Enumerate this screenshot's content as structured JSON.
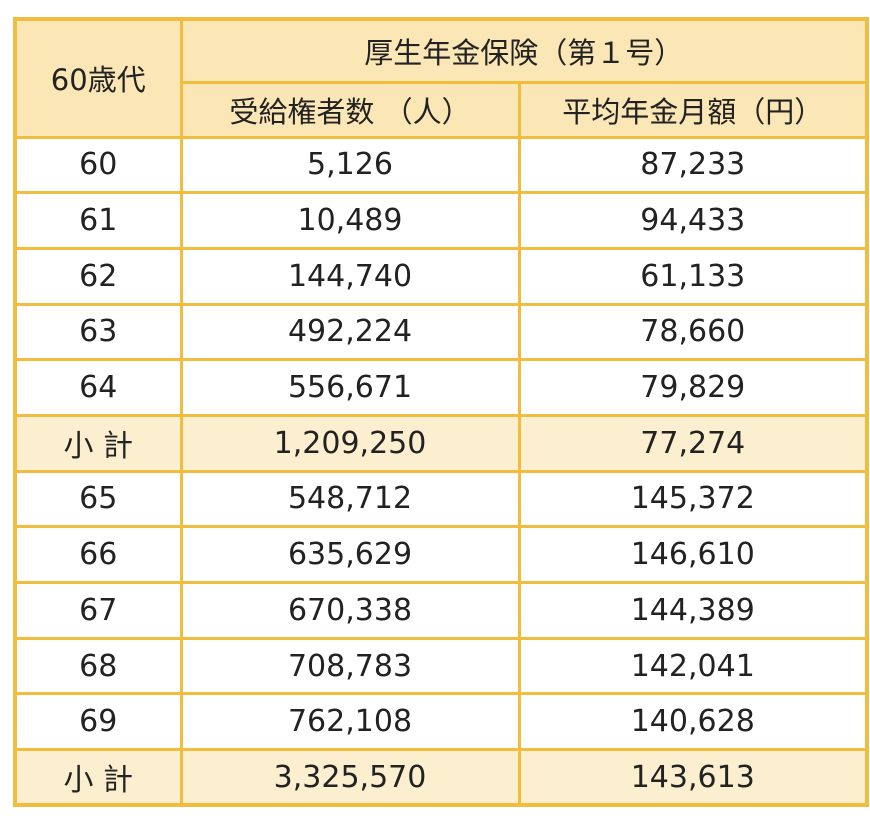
{
  "table": {
    "corner_label": "60歳代",
    "group_header": "厚生年金保険（第１号）",
    "columns": [
      "受給権者数 （人）",
      "平均年金月額（円）"
    ],
    "rows": [
      {
        "age": "60",
        "recipients": "5,126",
        "average": "87,233",
        "subtotal": false
      },
      {
        "age": "61",
        "recipients": "10,489",
        "average": "94,433",
        "subtotal": false
      },
      {
        "age": "62",
        "recipients": "144,740",
        "average": "61,133",
        "subtotal": false
      },
      {
        "age": "63",
        "recipients": "492,224",
        "average": "78,660",
        "subtotal": false
      },
      {
        "age": "64",
        "recipients": "556,671",
        "average": "79,829",
        "subtotal": false
      },
      {
        "age": "小 計",
        "recipients": "1,209,250",
        "average": "77,274",
        "subtotal": true
      },
      {
        "age": "65",
        "recipients": "548,712",
        "average": "145,372",
        "subtotal": false
      },
      {
        "age": "66",
        "recipients": "635,629",
        "average": "146,610",
        "subtotal": false
      },
      {
        "age": "67",
        "recipients": "670,338",
        "average": "144,389",
        "subtotal": false
      },
      {
        "age": "68",
        "recipients": "708,783",
        "average": "142,041",
        "subtotal": false
      },
      {
        "age": "69",
        "recipients": "762,108",
        "average": "140,628",
        "subtotal": false
      },
      {
        "age": "小 計",
        "recipients": "3,325,570",
        "average": "143,613",
        "subtotal": true
      }
    ]
  },
  "colors": {
    "border": "#f2bd3f",
    "header_bg": "#fbe6b6",
    "subtotal_bg": "#fcefd0",
    "text": "#222222"
  }
}
